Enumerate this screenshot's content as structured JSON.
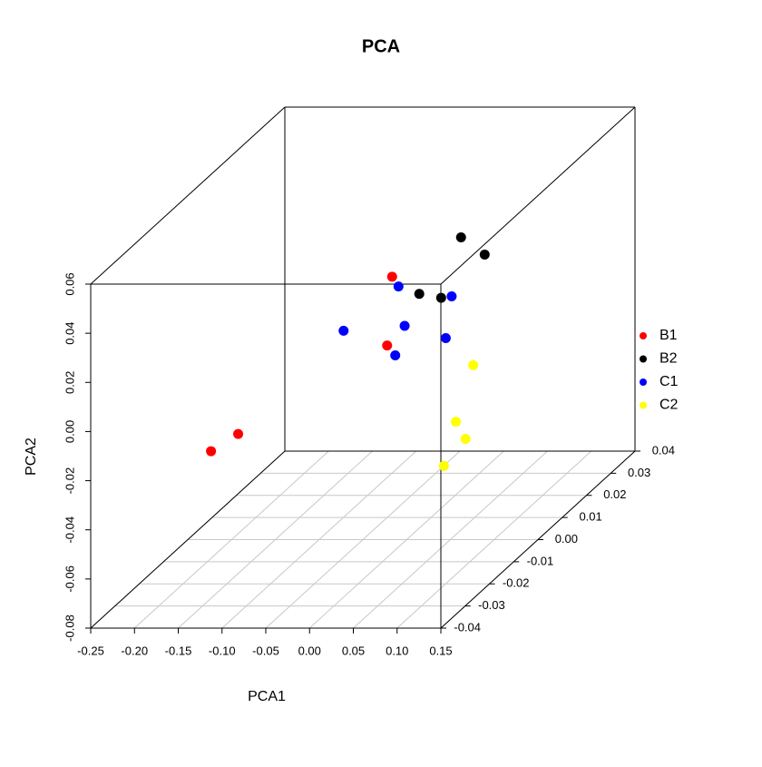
{
  "chart_data": {
    "type": "scatter3d",
    "title": "PCA",
    "x_label": "PCA1",
    "y_label": "PCA2",
    "xlim": [
      -0.25,
      0.15
    ],
    "ylim": [
      -0.08,
      0.06
    ],
    "zlim": [
      -0.04,
      0.04
    ],
    "xticks": [
      -0.25,
      {
        "value": -0.2,
        "label": "-0.20"
      },
      -0.15,
      {
        "value": -0.1,
        "label": "-0.10"
      },
      -0.05,
      {
        "value": 0,
        "label": "0.00"
      },
      0.05,
      {
        "value": 0.1,
        "label": "0.10"
      },
      0.15
    ],
    "yticks": [
      -0.08,
      -0.06,
      -0.04,
      -0.02,
      {
        "value": 0,
        "label": "0.00"
      },
      0.02,
      0.04,
      0.06
    ],
    "zticks": [
      -0.04,
      -0.03,
      -0.02,
      -0.01,
      {
        "value": 0,
        "label": "0.00"
      },
      0.01,
      0.02,
      0.03,
      0.04
    ],
    "grid": true,
    "legend": "right",
    "series": [
      {
        "name": "B1",
        "color": "#ff0000",
        "x": [
          -0.072,
          -0.05,
          -0.137,
          -0.168
        ],
        "values": [
          0.009,
          -0.01,
          -0.019,
          -0.026
        ],
        "z": [
          0.02,
          0.01,
          -0.02,
          -0.02
        ]
      },
      {
        "name": "B2",
        "color": "#000000",
        "x": [
          -0.021,
          0.006,
          -0.041,
          -0.016
        ],
        "values": [
          0.016,
          0.009,
          0.002,
          0.0004
        ],
        "z": [
          0.03,
          0.03,
          0.02,
          0.02
        ]
      },
      {
        "name": "C1",
        "color": "#0000ff",
        "x": [
          -0.037,
          -0.004,
          -0.072,
          -0.03,
          -0.013,
          0.017
        ],
        "values": [
          0.014,
          0.001,
          0.005,
          -0.002,
          -0.005,
          -0.007
        ],
        "z": [
          0.01,
          0.02,
          0,
          0.01,
          0,
          0.01
        ]
      },
      {
        "name": "C2",
        "color": "#ffff00",
        "x": [
          0.076,
          0.084,
          0.095,
          0.098
        ],
        "values": [
          -0.009,
          -0.023,
          -0.03,
          -0.032
        ],
        "z": [
          0,
          -0.01,
          -0.01,
          -0.02
        ]
      }
    ]
  }
}
